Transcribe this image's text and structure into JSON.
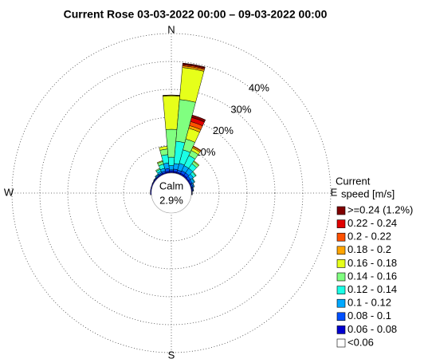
{
  "chart_data": {
    "type": "rose",
    "title": "Current Rose 03-03-2022 00:00 – 09-03-2022 00:00",
    "x": [
      270,
      280,
      290,
      300,
      310,
      320,
      330,
      340,
      350,
      0,
      10,
      20,
      30,
      40,
      50,
      60,
      70,
      80,
      90
    ],
    "rlim": [
      0,
      50
    ],
    "rticks": [
      {
        "value": 10,
        "label": "10%"
      },
      {
        "value": 20,
        "label": "20%"
      },
      {
        "value": 30,
        "label": "30%"
      },
      {
        "value": 40,
        "label": "40%"
      }
    ],
    "compass": [
      "N",
      "E",
      "S",
      "W"
    ],
    "calm": {
      "label": "Calm",
      "value": 2.9,
      "value_label": "2.9%"
    },
    "legend_title": [
      "Current",
      "speed [m/s]"
    ],
    "series": [
      {
        "name": ">=0.24 (1.2%)",
        "color": "#800000",
        "values": [
          0,
          0,
          0,
          0,
          0,
          0,
          0,
          0,
          0,
          0,
          0.3,
          0.9,
          0,
          0,
          0,
          0,
          0,
          0,
          0
        ]
      },
      {
        "name": "0.22 - 0.24",
        "color": "#e00000",
        "values": [
          0,
          0,
          0,
          0,
          0,
          0,
          0,
          0,
          0,
          0,
          0.3,
          1.5,
          0,
          0,
          0,
          0,
          0,
          0,
          0
        ]
      },
      {
        "name": "0.2 - 0.22",
        "color": "#ff5000",
        "values": [
          0,
          0,
          0,
          0,
          0,
          0,
          0,
          0,
          0,
          0.1,
          0.4,
          1.5,
          0.3,
          0,
          0,
          0,
          0,
          0,
          0
        ]
      },
      {
        "name": "0.18 - 0.2",
        "color": "#ffa500",
        "values": [
          0,
          0,
          0,
          0,
          0,
          0,
          0,
          0,
          0,
          0.2,
          0.6,
          1,
          0.5,
          0,
          0,
          0,
          0,
          0,
          0
        ]
      },
      {
        "name": "0.16 - 0.18",
        "color": "#e6ff1a",
        "values": [
          0,
          0,
          0,
          0,
          0,
          0,
          0,
          0.3,
          1,
          12,
          11.5,
          4,
          1,
          0.3,
          0,
          0,
          0,
          0,
          0
        ]
      },
      {
        "name": "0.14 - 0.16",
        "color": "#80ff80",
        "values": [
          0,
          0,
          0,
          0,
          0,
          0,
          0.4,
          1,
          2,
          10,
          15,
          4,
          2,
          1,
          0.3,
          0,
          0,
          0,
          0
        ]
      },
      {
        "name": "0.12 - 0.14",
        "color": "#1affe6",
        "values": [
          0,
          0,
          0,
          0,
          0,
          0.2,
          0.8,
          1.5,
          3,
          3,
          8,
          5,
          4,
          2,
          1,
          0.3,
          0.1,
          0,
          0
        ]
      },
      {
        "name": "0.1 - 0.12",
        "color": "#00a8ff",
        "values": [
          0,
          0,
          0,
          0,
          0.1,
          0.3,
          0.6,
          1,
          2,
          1.5,
          2,
          2.5,
          2,
          2,
          1.2,
          0.8,
          0.4,
          0.2,
          0
        ]
      },
      {
        "name": "0.08 - 0.1",
        "color": "#0050ff",
        "values": [
          0,
          0,
          0,
          0.1,
          0.2,
          0.3,
          0.4,
          0.6,
          1,
          0.5,
          0.8,
          0.8,
          1,
          1,
          0.8,
          0.6,
          0.5,
          0.3,
          0.1
        ]
      },
      {
        "name": "0.06 - 0.08",
        "color": "#0000d0",
        "values": [
          0.3,
          0.3,
          0.3,
          0.3,
          0.3,
          0.3,
          0.4,
          0.4,
          0.5,
          0.5,
          0.5,
          0.4,
          0.5,
          0.5,
          0.4,
          0.4,
          0.3,
          0.3,
          0.2
        ]
      },
      {
        "name": "<0.06",
        "color": "#ffffff",
        "values": [
          0.1,
          0.1,
          0.1,
          0.1,
          0.1,
          0.1,
          0.1,
          0.1,
          0.2,
          0.2,
          0.2,
          0.2,
          0.2,
          0.2,
          0.1,
          0.1,
          0.1,
          0.1,
          0.1
        ]
      }
    ]
  }
}
